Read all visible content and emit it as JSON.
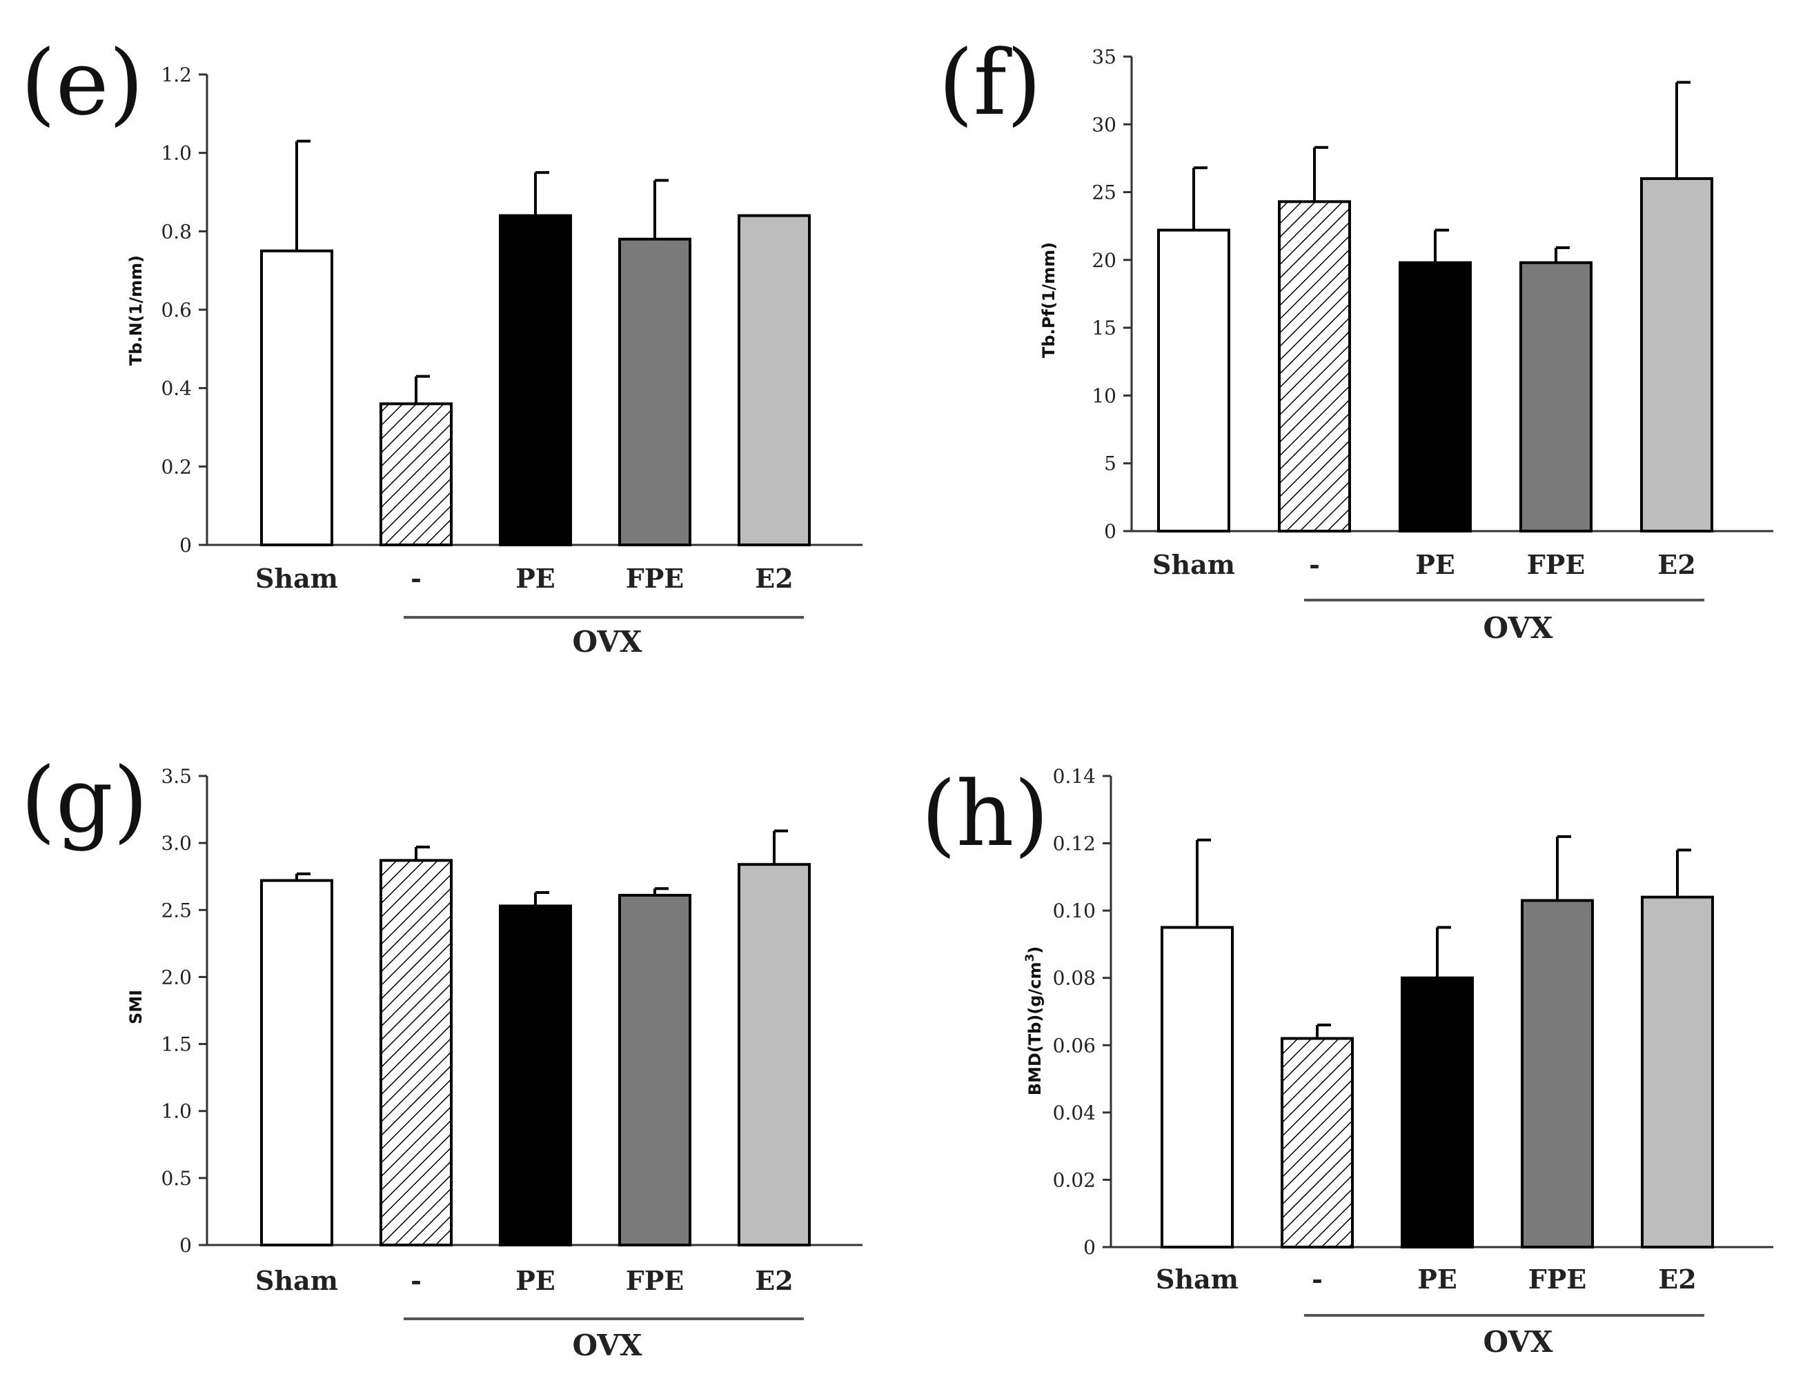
{
  "chart_data": [
    {
      "panel": "(e)",
      "type": "bar",
      "categories": [
        "Sham",
        "-",
        "PE",
        "FPE",
        "E2"
      ],
      "values": [
        0.75,
        0.36,
        0.84,
        0.78,
        0.84
      ],
      "errors": [
        0.28,
        0.07,
        0.11,
        0.15,
        0.0
      ],
      "ylabel": "Tb.N(1/mm)",
      "ylim": [
        0,
        1.2
      ],
      "yticks": [
        "0",
        "0.2",
        "0.4",
        "0.6",
        "0.8",
        "1.0",
        "1.2"
      ],
      "group_label": "OVX",
      "colors": [
        "#ffffff",
        "hatch",
        "#000000",
        "#7a7a7a",
        "#bdbdbd"
      ]
    },
    {
      "panel": "(f)",
      "type": "bar",
      "categories": [
        "Sham",
        "-",
        "PE",
        "FPE",
        "E2"
      ],
      "values": [
        22.2,
        24.3,
        19.8,
        19.8,
        26.0
      ],
      "errors": [
        4.6,
        4.0,
        2.4,
        1.1,
        7.1
      ],
      "ylabel": "Tb.Pf(1/mm)",
      "ylim": [
        0,
        35
      ],
      "yticks": [
        "0",
        "5",
        "10",
        "15",
        "20",
        "25",
        "30",
        "35"
      ],
      "group_label": "OVX",
      "colors": [
        "#ffffff",
        "hatch",
        "#000000",
        "#7a7a7a",
        "#bdbdbd"
      ]
    },
    {
      "panel": "(g)",
      "type": "bar",
      "categories": [
        "Sham",
        "-",
        "PE",
        "FPE",
        "E2"
      ],
      "values": [
        2.72,
        2.87,
        2.53,
        2.61,
        2.84
      ],
      "errors": [
        0.05,
        0.1,
        0.1,
        0.05,
        0.25
      ],
      "ylabel": "SMI",
      "ylim": [
        0,
        3.5
      ],
      "yticks": [
        "0",
        "0.5",
        "1.0",
        "1.5",
        "2.0",
        "2.5",
        "3.0",
        "3.5"
      ],
      "group_label": "OVX",
      "colors": [
        "#ffffff",
        "hatch",
        "#000000",
        "#7a7a7a",
        "#bdbdbd"
      ]
    },
    {
      "panel": "(h)",
      "type": "bar",
      "categories": [
        "Sham",
        "-",
        "PE",
        "FPE",
        "E2"
      ],
      "values": [
        0.095,
        0.062,
        0.08,
        0.103,
        0.104
      ],
      "errors": [
        0.026,
        0.004,
        0.015,
        0.019,
        0.014
      ],
      "ylabel": "BMD(Tb)(g/cm",
      "ylabel_sup": "3",
      "ylabel_end": ")",
      "ylim": [
        0,
        0.14
      ],
      "yticks": [
        "0",
        "0.02",
        "0.04",
        "0.06",
        "0.08",
        "0.10",
        "0.12",
        "0.14"
      ],
      "group_label": "OVX",
      "colors": [
        "#ffffff",
        "hatch",
        "#000000",
        "#7a7a7a",
        "#bdbdbd"
      ]
    }
  ]
}
